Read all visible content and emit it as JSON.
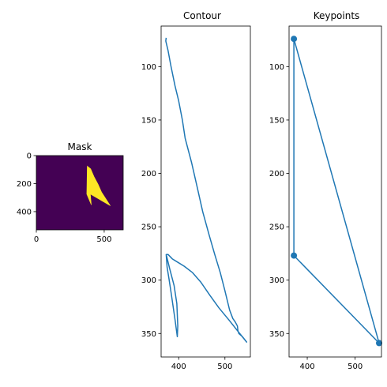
{
  "chart_data": [
    {
      "type": "heatmap",
      "title": "Mask",
      "xlim": [
        0,
        640
      ],
      "ylim": [
        530,
        0
      ],
      "xticks": [
        0,
        500
      ],
      "yticks": [
        0,
        200,
        400
      ],
      "background_color": "#440154",
      "mask_color": "#fde725",
      "mask_polygon": [
        [
          375,
          75
        ],
        [
          400,
          95
        ],
        [
          425,
          150
        ],
        [
          455,
          205
        ],
        [
          480,
          260
        ],
        [
          545,
          358
        ],
        [
          398,
          275
        ],
        [
          405,
          352
        ],
        [
          372,
          275
        ]
      ]
    },
    {
      "type": "line",
      "title": "Contour",
      "xlim": [
        362,
        555
      ],
      "ylim": [
        372,
        62
      ],
      "xticks": [
        400,
        500
      ],
      "yticks": [
        100,
        150,
        200,
        250,
        300,
        350
      ],
      "series": [
        {
          "color": "#1f77b4",
          "x": [
            373,
            372,
            377,
            383,
            392,
            400,
            408,
            414,
            428,
            440,
            452,
            466,
            478,
            490,
            500,
            510,
            517,
            522,
            527,
            528,
            530,
            538,
            547,
            530,
            508,
            487,
            467,
            448,
            430,
            412,
            397,
            386,
            377,
            373,
            381,
            390,
            396,
            398,
            397,
            392,
            384,
            379,
            375,
            373
          ],
          "y": [
            73,
            76,
            85,
            99,
            118,
            132,
            150,
            167,
            190,
            213,
            236,
            258,
            276,
            293,
            310,
            328,
            336,
            339,
            343,
            347,
            350,
            353,
            358,
            349,
            337,
            326,
            314,
            302,
            293,
            287,
            283,
            280,
            276,
            276,
            290,
            305,
            322,
            343,
            353,
            337,
            313,
            299,
            288,
            276
          ]
        }
      ]
    },
    {
      "type": "scatter",
      "title": "Keypoints",
      "xlim": [
        362,
        555
      ],
      "ylim": [
        372,
        62
      ],
      "xticks": [
        400,
        500
      ],
      "yticks": [
        100,
        150,
        200,
        250,
        300,
        350
      ],
      "series": [
        {
          "color": "#1f77b4",
          "x": [
            372,
            372,
            550,
            372
          ],
          "y": [
            74,
            277,
            359,
            74
          ]
        }
      ]
    }
  ]
}
